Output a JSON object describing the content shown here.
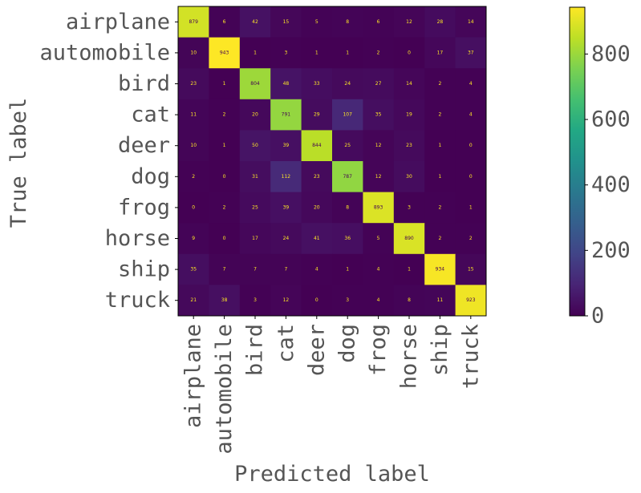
{
  "chart_data": {
    "type": "heatmap",
    "title": "",
    "xlabel": "Predicted label",
    "ylabel": "True label",
    "categories": [
      "airplane",
      "automobile",
      "bird",
      "cat",
      "deer",
      "dog",
      "frog",
      "horse",
      "ship",
      "truck"
    ],
    "matrix": [
      [
        879,
        6,
        42,
        15,
        5,
        8,
        6,
        12,
        28,
        14
      ],
      [
        10,
        943,
        1,
        3,
        1,
        1,
        2,
        0,
        17,
        37
      ],
      [
        23,
        1,
        804,
        48,
        33,
        24,
        27,
        14,
        2,
        4
      ],
      [
        11,
        2,
        20,
        791,
        29,
        107,
        35,
        19,
        2,
        4
      ],
      [
        10,
        1,
        50,
        39,
        844,
        25,
        12,
        23,
        1,
        0
      ],
      [
        2,
        0,
        31,
        112,
        23,
        787,
        12,
        30,
        1,
        0
      ],
      [
        0,
        2,
        25,
        39,
        20,
        8,
        893,
        3,
        2,
        1
      ],
      [
        9,
        0,
        17,
        24,
        41,
        36,
        5,
        890,
        2,
        2
      ],
      [
        35,
        7,
        7,
        7,
        4,
        1,
        4,
        1,
        934,
        15
      ],
      [
        21,
        38,
        3,
        12,
        0,
        3,
        4,
        8,
        11,
        923
      ]
    ],
    "colormap": "viridis",
    "colorbar": {
      "min": 0,
      "max": 943,
      "ticks": [
        "0",
        "200",
        "400",
        "600",
        "800"
      ]
    },
    "grid": false
  }
}
